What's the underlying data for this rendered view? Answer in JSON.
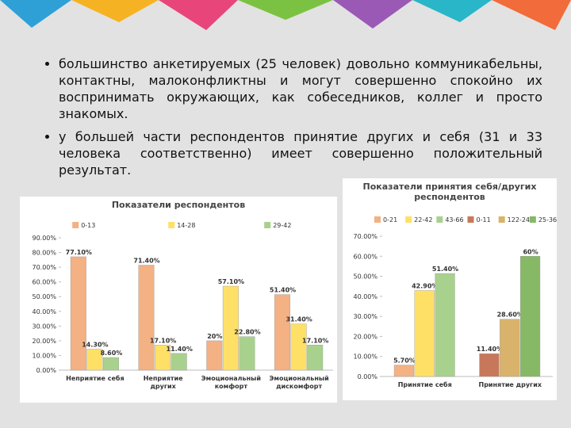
{
  "bullets": [
    "большинство анкетируемых (25 человек) довольно коммуникабельны, контактны, малоконфликтны и могут совершенно спокойно их воспринимать окружающих, как собеседников, коллег и просто знакомых.",
    "у большей части респондентов принятие других и себя (31 и 33 человека соответственно) имеет совершенно положительный результат."
  ],
  "chart_data": [
    {
      "type": "bar",
      "title": "Показатели респондентов",
      "categories": [
        "Неприятие себя",
        "Неприятие других",
        "Эмоциональный комфорт",
        "Эмоциональный дискомфорт"
      ],
      "series": [
        {
          "name": "0-13",
          "color": "#f4b183",
          "values": [
            77.1,
            71.4,
            20,
            51.4
          ],
          "value_labels": [
            "77.10%",
            "71.40%",
            "20%",
            "51.40%"
          ]
        },
        {
          "name": "14-28",
          "color": "#ffe066",
          "values": [
            14.3,
            17.1,
            57.1,
            31.4
          ],
          "value_labels": [
            "14.30%",
            "17.10%",
            "57.10%",
            "31.40%"
          ]
        },
        {
          "name": "29-42",
          "color": "#a9d18e",
          "values": [
            8.6,
            11.4,
            22.8,
            17.1
          ],
          "value_labels": [
            "8.60%",
            "11.40%",
            "22.80%",
            "17.10%"
          ]
        }
      ],
      "ylim": [
        0,
        90
      ],
      "yticks": [
        {
          "value": 0,
          "label": "0.00%"
        },
        {
          "value": 10,
          "label": "10.00%"
        },
        {
          "value": 20,
          "label": "20.00%"
        },
        {
          "value": 30,
          "label": "30.00%"
        },
        {
          "value": 40,
          "label": "40.00%"
        },
        {
          "value": 50,
          "label": "50.00%"
        },
        {
          "value": 60,
          "label": "60.00%"
        },
        {
          "value": 70,
          "label": "70.00%"
        },
        {
          "value": 80,
          "label": "80.00%"
        },
        {
          "value": 90,
          "label": "90.00%"
        }
      ]
    },
    {
      "type": "bar",
      "title": "Показатели принятия себя/других респондентов",
      "categories": [
        "Принятие себя",
        "Принятие других"
      ],
      "series": [
        {
          "name": "0-21",
          "color": "#f4b183",
          "values": [
            5.7,
            null
          ],
          "value_labels": [
            "5.70%",
            null
          ]
        },
        {
          "name": "22-42",
          "color": "#ffe066",
          "values": [
            42.9,
            null
          ],
          "value_labels": [
            "42.90%",
            null
          ]
        },
        {
          "name": "43-66",
          "color": "#a9d18e",
          "values": [
            51.4,
            null
          ],
          "value_labels": [
            "51.40%",
            null
          ]
        },
        {
          "name": "0-11",
          "color": "#c8785a",
          "values": [
            null,
            11.4
          ],
          "value_labels": [
            null,
            "11.40%"
          ]
        },
        {
          "name": "122-24",
          "color": "#d9b36b",
          "values": [
            null,
            28.6
          ],
          "value_labels": [
            null,
            "28.60%"
          ]
        },
        {
          "name": "25-36",
          "color": "#86b865",
          "values": [
            null,
            60
          ],
          "value_labels": [
            null,
            "60%"
          ]
        }
      ],
      "ylim": [
        0,
        70
      ],
      "yticks": [
        {
          "value": 0,
          "label": "0.00%"
        },
        {
          "value": 10,
          "label": "10.00%"
        },
        {
          "value": 20,
          "label": "20.00%"
        },
        {
          "value": 30,
          "label": "30.00%"
        },
        {
          "value": 40,
          "label": "40.00%"
        },
        {
          "value": 50,
          "label": "50.00%"
        },
        {
          "value": 60,
          "label": "60.00%"
        },
        {
          "value": 70,
          "label": "70.00%"
        }
      ]
    }
  ]
}
